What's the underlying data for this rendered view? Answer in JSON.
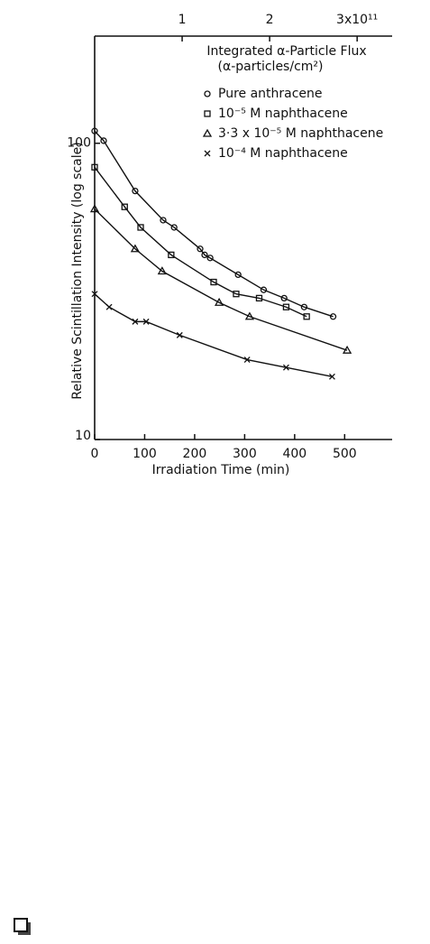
{
  "chart_data": {
    "type": "line",
    "ylabel": "Relative Scintillation Intensity (log scale)",
    "xlabel": "Irradiation Time (min)",
    "x2label": "Integrated α-Particle Flux",
    "x2label_units": "(α-particles/cm²)",
    "xlim": [
      0,
      595
    ],
    "xticks": [
      0,
      100,
      200,
      300,
      400,
      500
    ],
    "x2lim": [
      0,
      3.4
    ],
    "x2ticks": [
      1,
      2,
      {
        "value": 3,
        "label": "3x10¹¹"
      }
    ],
    "ylim": [
      10,
      230
    ],
    "ylog": true,
    "yticks": [
      10,
      100
    ],
    "legend": "upper right",
    "series": [
      {
        "name": "Pure anthracene",
        "color": "#111111",
        "marker": "circle",
        "x": [
          0,
          18,
          81,
          137,
          159,
          211,
          220,
          231,
          287,
          338,
          379,
          419,
          477
        ],
        "values": [
          110,
          102,
          69,
          55,
          52,
          44,
          42,
          41,
          36,
          32,
          30,
          28,
          26
        ]
      },
      {
        "name": "10⁻⁵ M naphthacene",
        "color": "#111111",
        "marker": "square",
        "x": [
          0,
          60,
          92,
          153,
          238,
          283,
          329,
          383,
          424
        ],
        "values": [
          83,
          61,
          52,
          42,
          34,
          31,
          30,
          28,
          26
        ]
      },
      {
        "name": "3·3 x 10⁻⁵ M naphthacene",
        "color": "#111111",
        "marker": "triangle",
        "x": [
          0,
          81,
          135,
          249,
          310,
          505
        ],
        "values": [
          60,
          44,
          37,
          29,
          26,
          20
        ]
      },
      {
        "name": "10⁻⁴ M naphthacene",
        "color": "#111111",
        "marker": "cross",
        "x": [
          0,
          29,
          81,
          103,
          170,
          305,
          383,
          475
        ],
        "values": [
          31,
          28,
          25,
          25,
          22.5,
          18.6,
          17.5,
          16.3
        ]
      }
    ]
  }
}
